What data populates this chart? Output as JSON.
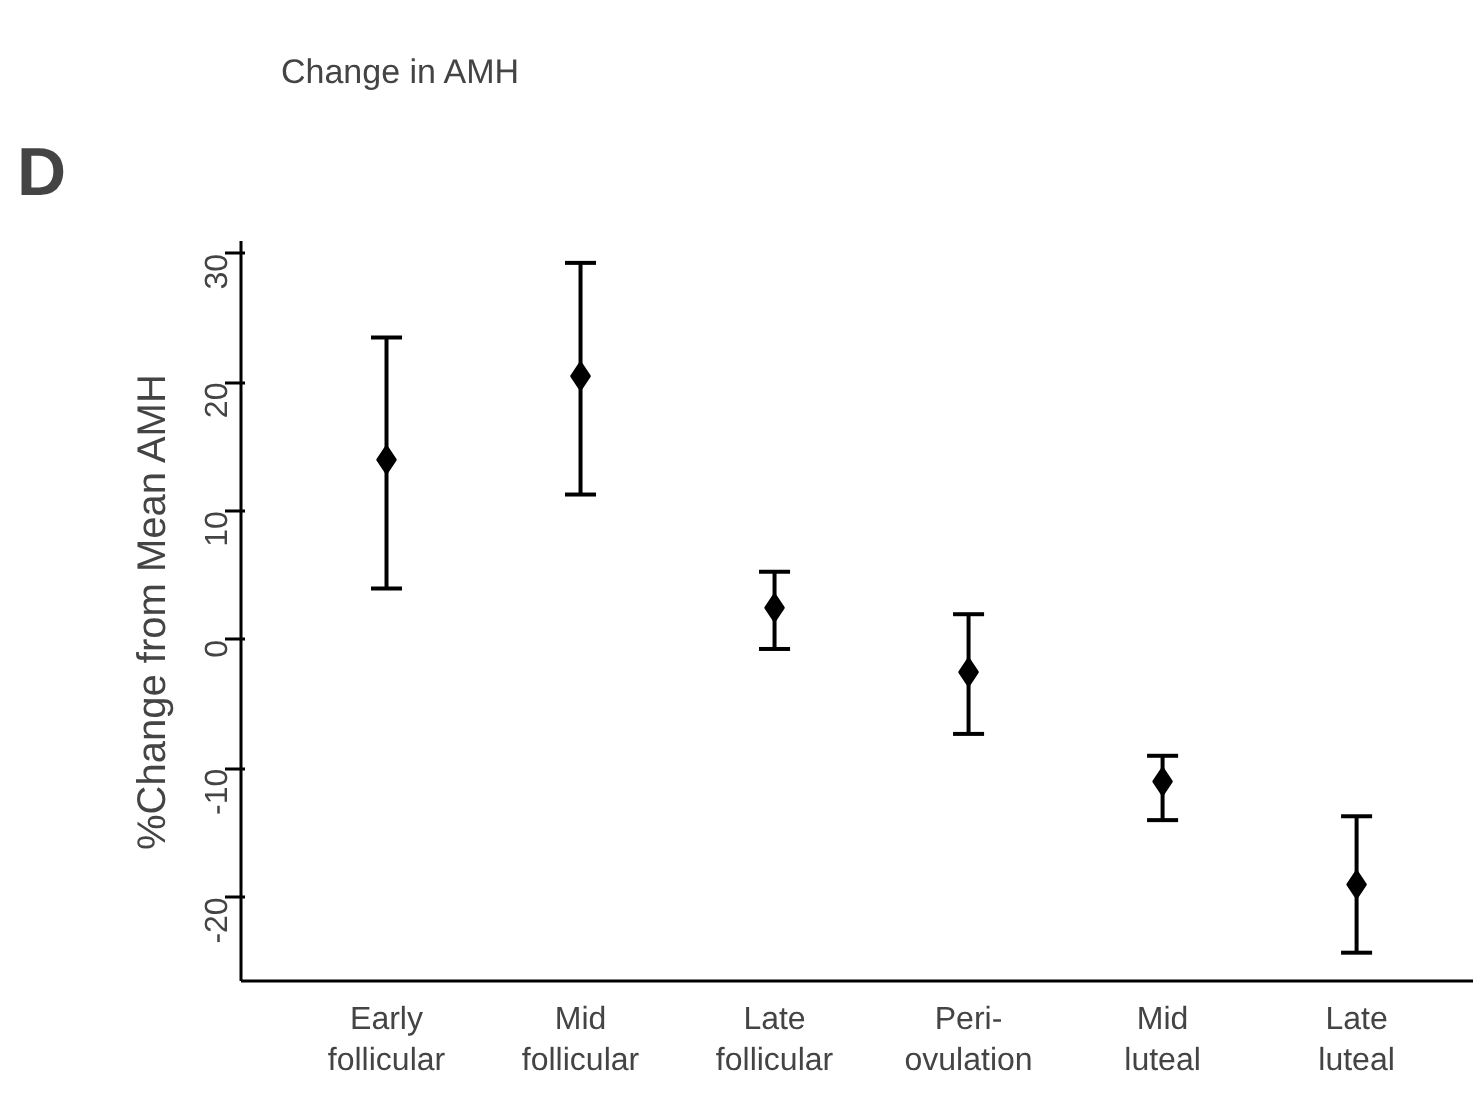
{
  "chart_data": {
    "type": "scatter",
    "title": "Change in AMH",
    "ylabel": "%Change from Mean AMH",
    "annotations": [
      "D"
    ],
    "categories": [
      "Early\nfollicular",
      "Mid\nfollicular",
      "Late\nfollicular",
      "Peri-\novulation",
      "Mid\nluteal",
      "Late\nluteal"
    ],
    "values": [
      14,
      20.5,
      2.5,
      -2.5,
      -11,
      -19
    ],
    "errors": [
      [
        4,
        23.5
      ],
      [
        11.3,
        29.3
      ],
      [
        -0.7,
        5.3
      ],
      [
        -7.3,
        2
      ],
      [
        -14,
        -9
      ],
      [
        -24.3,
        -13.7
      ]
    ],
    "color": "#000000",
    "marker": "diamond",
    "ylim": [
      -26.5,
      31
    ],
    "yticks": [
      -20,
      -10,
      0,
      10,
      20,
      30
    ],
    "grid": false
  }
}
